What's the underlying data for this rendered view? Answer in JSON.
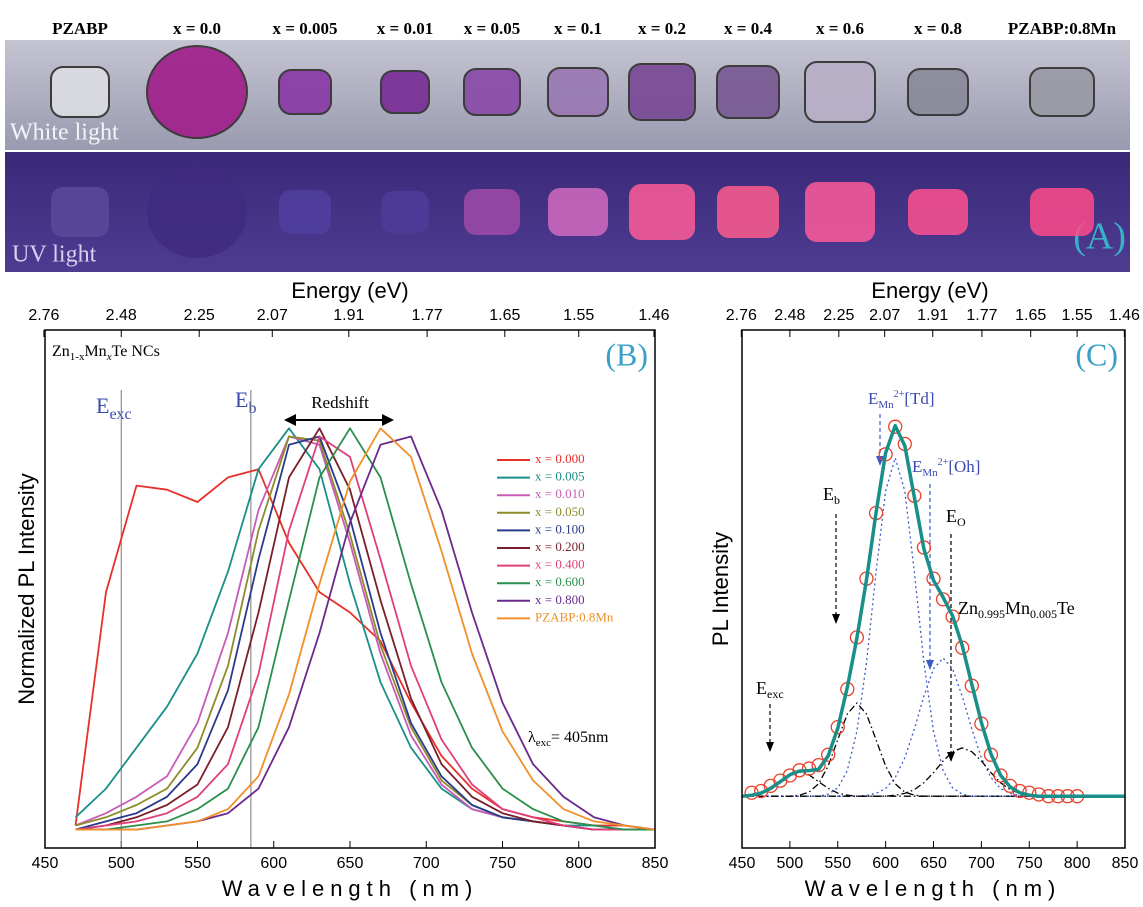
{
  "panel_a": {
    "labels": [
      "PZABP",
      "x = 0.0",
      "x = 0.005",
      "x = 0.01",
      "x = 0.05",
      "x = 0.1",
      "x = 0.2",
      "x = 0.4",
      "x = 0.6",
      "x = 0.8",
      "PZABP:0.8Mn"
    ],
    "white_light": "White light",
    "uv_light": "UV  light",
    "panel_label": "(A)"
  },
  "chart_data": [
    {
      "type": "line",
      "panel_label": "(B)",
      "x_label": "Wavelength (nm)",
      "x2_label": "Energy (eV)",
      "y_label": "Normalized PL Intensity",
      "xlim": [
        450,
        850
      ],
      "xticks": [
        450,
        500,
        550,
        600,
        650,
        700,
        750,
        800,
        850
      ],
      "x2ticks": [
        2.76,
        2.48,
        2.25,
        2.07,
        1.91,
        1.77,
        1.65,
        1.55,
        1.46
      ],
      "ylim": [
        -0.025,
        1.24
      ],
      "vlines": [
        500,
        585
      ],
      "annotations": {
        "sample": [
          "Zn",
          "1-x",
          "Mn",
          "x",
          "Te NCs"
        ],
        "e_exc": [
          "E",
          "exc"
        ],
        "e_b": [
          "E",
          "b"
        ],
        "redshift": "Redshift",
        "lambda": [
          "λ",
          "exc",
          "= 405nm"
        ]
      },
      "x": [
        450,
        470,
        490,
        510,
        530,
        550,
        570,
        590,
        610,
        630,
        650,
        670,
        690,
        710,
        730,
        750,
        770,
        790,
        810,
        830,
        850
      ],
      "series": [
        {
          "name": "x = 0.000",
          "color": "#e8302a",
          "values": [
            null,
            0.03,
            0.6,
            0.86,
            0.85,
            0.82,
            0.88,
            0.9,
            0.72,
            0.6,
            0.55,
            0.48,
            0.33,
            0.2,
            0.12,
            0.07,
            0.05,
            0.04,
            0.03,
            0.03,
            0.02
          ]
        },
        {
          "name": "x = 0.005",
          "color": "#1a8f8a",
          "values": [
            null,
            0.05,
            0.12,
            0.22,
            0.32,
            0.45,
            0.65,
            0.9,
            1.0,
            0.9,
            0.62,
            0.38,
            0.22,
            0.12,
            0.07,
            0.05,
            0.04,
            0.03,
            0.03,
            0.02,
            0.02
          ]
        },
        {
          "name": "x = 0.010",
          "color": "#c85ab8",
          "values": [
            null,
            0.03,
            0.06,
            0.1,
            0.15,
            0.28,
            0.5,
            0.8,
            0.98,
            0.96,
            0.72,
            0.45,
            0.25,
            0.13,
            0.07,
            0.05,
            0.04,
            0.03,
            0.02,
            0.02,
            0.02
          ]
        },
        {
          "name": "x = 0.050",
          "color": "#8c8c2a",
          "values": [
            null,
            0.03,
            0.05,
            0.08,
            0.12,
            0.22,
            0.42,
            0.75,
            0.98,
            0.97,
            0.74,
            0.47,
            0.27,
            0.14,
            0.08,
            0.05,
            0.04,
            0.03,
            0.02,
            0.02,
            0.02
          ]
        },
        {
          "name": "x = 0.100",
          "color": "#2a3a8c",
          "values": [
            null,
            0.02,
            0.04,
            0.06,
            0.1,
            0.18,
            0.36,
            0.68,
            0.96,
            0.98,
            0.78,
            0.5,
            0.28,
            0.15,
            0.08,
            0.05,
            0.04,
            0.03,
            0.02,
            0.02,
            0.02
          ]
        },
        {
          "name": "x = 0.200",
          "color": "#7a1f2a",
          "values": [
            null,
            0.02,
            0.03,
            0.05,
            0.08,
            0.13,
            0.27,
            0.55,
            0.88,
            1.0,
            0.85,
            0.58,
            0.34,
            0.18,
            0.1,
            0.06,
            0.04,
            0.03,
            0.02,
            0.02,
            0.02
          ]
        },
        {
          "name": "x = 0.400",
          "color": "#e0407a",
          "values": [
            null,
            0.02,
            0.03,
            0.04,
            0.06,
            0.1,
            0.18,
            0.4,
            0.75,
            0.98,
            0.93,
            0.68,
            0.42,
            0.24,
            0.13,
            0.07,
            0.05,
            0.03,
            0.02,
            0.02,
            0.02
          ]
        },
        {
          "name": "x = 0.600",
          "color": "#2a8f4a",
          "values": [
            null,
            0.02,
            0.02,
            0.03,
            0.04,
            0.07,
            0.12,
            0.27,
            0.58,
            0.88,
            1.0,
            0.88,
            0.62,
            0.38,
            0.22,
            0.12,
            0.07,
            0.04,
            0.03,
            0.02,
            0.02
          ]
        },
        {
          "name": "x = 0.800",
          "color": "#6a2a8c",
          "values": [
            null,
            0.02,
            0.02,
            0.02,
            0.03,
            0.04,
            0.06,
            0.12,
            0.27,
            0.5,
            0.77,
            0.96,
            0.98,
            0.8,
            0.55,
            0.33,
            0.18,
            0.1,
            0.05,
            0.03,
            0.02
          ]
        },
        {
          "name": "PZABP:0.8Mn",
          "color": "#f0902a",
          "values": [
            null,
            0.02,
            0.02,
            0.02,
            0.03,
            0.04,
            0.07,
            0.15,
            0.35,
            0.62,
            0.87,
            1.0,
            0.93,
            0.7,
            0.45,
            0.26,
            0.14,
            0.07,
            0.04,
            0.03,
            0.02
          ]
        }
      ],
      "legend": "right"
    },
    {
      "type": "line",
      "panel_label": "(C)",
      "x_label": "Wavelength (nm)",
      "x2_label": "Energy (eV)",
      "y_label": "PL Intensity",
      "xlim": [
        450,
        850
      ],
      "xticks": [
        450,
        500,
        550,
        600,
        650,
        700,
        750,
        800,
        850
      ],
      "x2ticks": [
        2.76,
        2.48,
        2.25,
        2.07,
        1.91,
        1.77,
        1.65,
        1.55,
        1.46
      ],
      "ylim": [
        -0.15,
        1.35
      ],
      "annotations": {
        "sample": [
          "Zn",
          "0.995",
          "Mn",
          "0.005",
          "Te"
        ],
        "e_exc": [
          "E",
          "exc"
        ],
        "e_b": [
          "E",
          "b"
        ],
        "e_td": [
          "E",
          "Mn",
          "2+",
          "[Td]"
        ],
        "e_oh": [
          "E",
          "Mn",
          "2+",
          "[Oh]"
        ],
        "e_o": [
          "E",
          "O"
        ]
      },
      "x": [
        450,
        460,
        470,
        480,
        490,
        500,
        510,
        520,
        530,
        540,
        550,
        560,
        570,
        580,
        590,
        600,
        610,
        620,
        630,
        640,
        650,
        660,
        670,
        680,
        690,
        700,
        710,
        720,
        730,
        740,
        750,
        760,
        770,
        780,
        790,
        800,
        810,
        820,
        830,
        840,
        850
      ],
      "series": [
        {
          "color": "#000000",
          "line_style": "dashdot",
          "values": [
            0,
            0.003,
            0.009,
            0.023,
            0.042,
            0.062,
            0.07,
            0.062,
            0.042,
            0.023,
            0.009,
            0.003,
            0,
            0,
            0,
            0,
            0,
            0,
            0,
            0,
            0,
            0,
            0,
            0,
            0,
            0,
            0,
            0,
            0,
            0,
            0,
            0,
            0,
            0,
            0,
            0,
            0,
            0,
            0,
            0,
            0
          ]
        },
        {
          "color": "#000000",
          "line_style": "dashdot",
          "values": [
            0,
            0,
            0,
            0,
            0,
            0,
            0.003,
            0.012,
            0.036,
            0.088,
            0.164,
            0.238,
            0.27,
            0.238,
            0.164,
            0.088,
            0.036,
            0.012,
            0.003,
            0,
            0,
            0,
            0,
            0,
            0,
            0,
            0,
            0,
            0,
            0,
            0,
            0,
            0,
            0,
            0,
            0,
            0,
            0,
            0,
            0,
            0
          ]
        },
        {
          "color": "#3a5ac8",
          "line_style": "dotted",
          "values": [
            0,
            0,
            0,
            0,
            0,
            0,
            0,
            0,
            0,
            0.006,
            0.024,
            0.074,
            0.188,
            0.387,
            0.648,
            0.884,
            0.98,
            0.884,
            0.648,
            0.387,
            0.188,
            0.074,
            0.024,
            0.006,
            0,
            0,
            0,
            0,
            0,
            0,
            0,
            0,
            0,
            0,
            0,
            0,
            0,
            0,
            0,
            0,
            0
          ]
        },
        {
          "color": "#3a5ac8",
          "line_style": "dotted",
          "values": [
            0,
            0,
            0,
            0,
            0,
            0,
            0,
            0,
            0,
            0,
            0,
            0,
            0,
            0.002,
            0.008,
            0.022,
            0.054,
            0.111,
            0.195,
            0.29,
            0.369,
            0.4,
            0.369,
            0.29,
            0.195,
            0.111,
            0.054,
            0.022,
            0.008,
            0.002,
            0,
            0,
            0,
            0,
            0,
            0,
            0,
            0,
            0,
            0,
            0
          ]
        },
        {
          "color": "#000000",
          "line_style": "dashdot",
          "values": [
            0,
            0,
            0,
            0,
            0,
            0,
            0,
            0,
            0,
            0,
            0,
            0,
            0,
            0,
            0,
            0,
            0.003,
            0.008,
            0.019,
            0.039,
            0.068,
            0.102,
            0.129,
            0.14,
            0.129,
            0.102,
            0.068,
            0.039,
            0.019,
            0.008,
            0.003,
            0,
            0,
            0,
            0,
            0,
            0,
            0,
            0,
            0,
            0
          ]
        },
        {
          "color": "#e8402a",
          "marker": "circle",
          "x": [
            460,
            470,
            480,
            490,
            500,
            510,
            520,
            530,
            540,
            550,
            560,
            570,
            580,
            590,
            600,
            610,
            620,
            630,
            640,
            650,
            660,
            670,
            680,
            690,
            700,
            710,
            720,
            730,
            740,
            750,
            760,
            770,
            780,
            790,
            800
          ],
          "values": [
            0.01,
            0.015,
            0.03,
            0.045,
            0.06,
            0.075,
            0.08,
            0.09,
            0.12,
            0.2,
            0.31,
            0.46,
            0.63,
            0.82,
            0.99,
            1.07,
            1.02,
            0.87,
            0.72,
            0.63,
            0.57,
            0.52,
            0.43,
            0.32,
            0.21,
            0.12,
            0.06,
            0.03,
            0.015,
            0.01,
            0.005,
            0,
            0,
            0,
            0
          ]
        },
        {
          "color": "#1a8f8a",
          "line_style": "thick",
          "values": [
            0,
            0.003,
            0.009,
            0.023,
            0.042,
            0.062,
            0.073,
            0.074,
            0.078,
            0.117,
            0.197,
            0.315,
            0.458,
            0.627,
            0.82,
            0.994,
            1.073,
            1.015,
            0.865,
            0.716,
            0.625,
            0.576,
            0.522,
            0.436,
            0.324,
            0.213,
            0.122,
            0.061,
            0.027,
            0.01,
            0.003,
            0,
            0,
            0,
            0,
            0,
            0,
            0,
            0,
            0,
            0
          ]
        }
      ]
    }
  ]
}
